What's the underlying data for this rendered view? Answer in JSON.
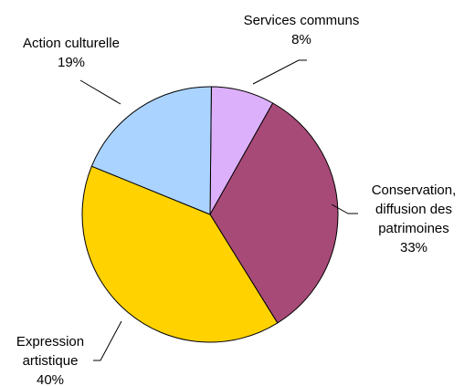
{
  "chart_data": {
    "type": "pie",
    "title": "",
    "slices": [
      {
        "name": "Services communs",
        "value": 8,
        "value_label": "8%",
        "color": "#DDB0FB"
      },
      {
        "name": "Conservation, diffusion des patrimoines",
        "value": 33,
        "value_label": "33%",
        "color": "#A84A78"
      },
      {
        "name": "Expression artistique",
        "value": 40,
        "value_label": "40%",
        "color": "#FFD200"
      },
      {
        "name": "Action culturelle",
        "value": 19,
        "value_label": "19%",
        "color": "#AAD4FF"
      }
    ],
    "labels": {
      "services_line1": "Services communs",
      "services_line2": "8%",
      "conservation_line1": "Conservation,",
      "conservation_line2": "diffusion des",
      "conservation_line3": "patrimoines",
      "conservation_line4": "33%",
      "expression_line1": "Expression",
      "expression_line2": "artistique",
      "expression_line3": "40%",
      "action_line1": "Action culturelle",
      "action_line2": "19%"
    },
    "legend": "none"
  }
}
